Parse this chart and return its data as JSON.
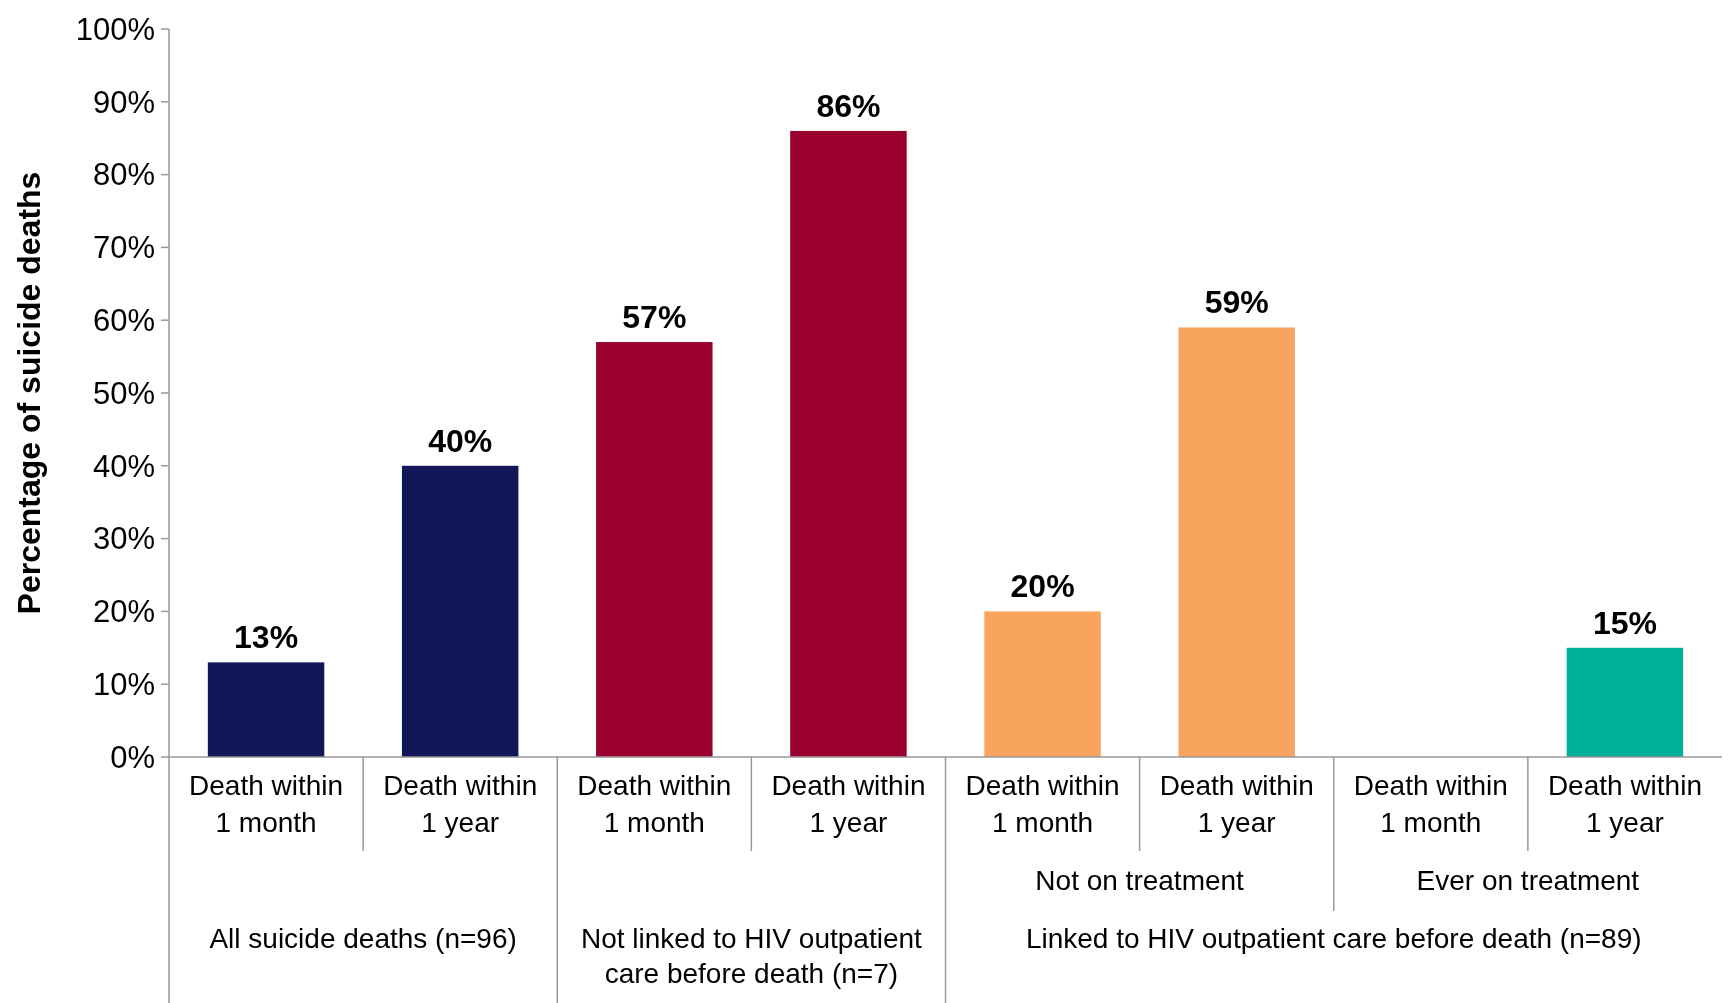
{
  "chart_data": {
    "type": "bar",
    "ylabel": "Percentage of suicide deaths",
    "categories": [
      "Death within 1 month",
      "Death within 1 year",
      "Death within 1 month",
      "Death within 1 year",
      "Death within 1 month",
      "Death within 1 year",
      "Death within 1 month",
      "Death within 1 year"
    ],
    "values": [
      13,
      40,
      57,
      86,
      20,
      59,
      null,
      15
    ],
    "colors": [
      "#12175a",
      "#12175a",
      "#99002e",
      "#99002e",
      "#f8a45e",
      "#f8a45e",
      null,
      "#00b09b"
    ],
    "ylim": [
      0,
      100
    ],
    "yticks": [
      {
        "value": 0,
        "label": "0%"
      },
      {
        "value": 10,
        "label": "10%"
      },
      {
        "value": 20,
        "label": "20%"
      },
      {
        "value": 30,
        "label": "30%"
      },
      {
        "value": 40,
        "label": "40%"
      },
      {
        "value": 50,
        "label": "50%"
      },
      {
        "value": 60,
        "label": "60%"
      },
      {
        "value": 70,
        "label": "70%"
      },
      {
        "value": 80,
        "label": "80%"
      },
      {
        "value": 90,
        "label": "90%"
      },
      {
        "value": 100,
        "label": "100%"
      }
    ],
    "value_labels": [
      "13%",
      "40%",
      "57%",
      "86%",
      "20%",
      "59%",
      null,
      "15%"
    ],
    "annotations": [
      "Not on treatment",
      "Ever on treatment",
      "All suicide deaths (n=96)",
      "Not linked to HIV outpatient care before death (n=7)",
      "Linked to HIV outpatient care before death (n=89)"
    ],
    "grid": false
  }
}
